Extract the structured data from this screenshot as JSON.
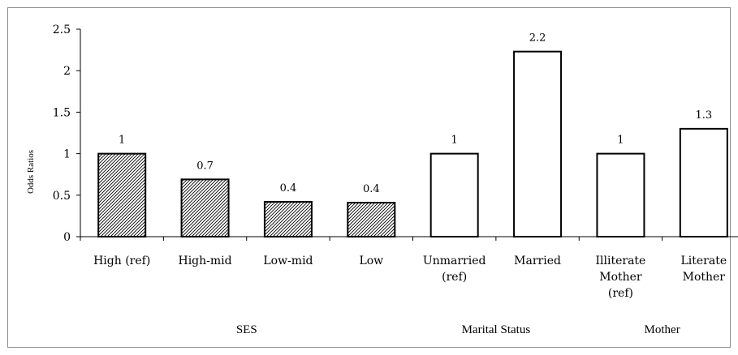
{
  "chart_data": {
    "type": "bar",
    "categories": [
      [
        "High (ref)"
      ],
      [
        "High-mid"
      ],
      [
        "Low-mid"
      ],
      [
        "Low"
      ],
      [
        "Unmarried",
        "(ref)"
      ],
      [
        "Married"
      ],
      [
        "Illiterate",
        "Mother",
        "(ref)"
      ],
      [
        "Literate",
        "Mother"
      ]
    ],
    "values": [
      1,
      0.69,
      0.42,
      0.41,
      1,
      2.23,
      1,
      1.3
    ],
    "value_labels": [
      "1",
      "0.7",
      "0.4",
      "0.4",
      "1",
      "2.2",
      "1",
      "1.3"
    ],
    "bar_styles": [
      "hatched",
      "hatched",
      "hatched",
      "hatched",
      "open",
      "open",
      "open",
      "open"
    ],
    "groups": [
      {
        "label": "SES",
        "start": 0,
        "end": 3
      },
      {
        "label": "Marital Status",
        "start": 4,
        "end": 5
      },
      {
        "label": "Mother",
        "start": 6,
        "end": 7
      }
    ],
    "ylabel": "Odds Ratios",
    "ylim": [
      0,
      2.5
    ],
    "yticks": [
      "0",
      "0.5",
      "1",
      "1.5",
      "2",
      "2.5"
    ],
    "ytick_values": [
      0,
      0.5,
      1,
      1.5,
      2,
      2.5
    ],
    "grid": false,
    "colors": {
      "hatched_fill": "#ffffff",
      "hatch_line": "#000000",
      "open_fill": "#ffffff",
      "stroke": "#000000"
    }
  }
}
